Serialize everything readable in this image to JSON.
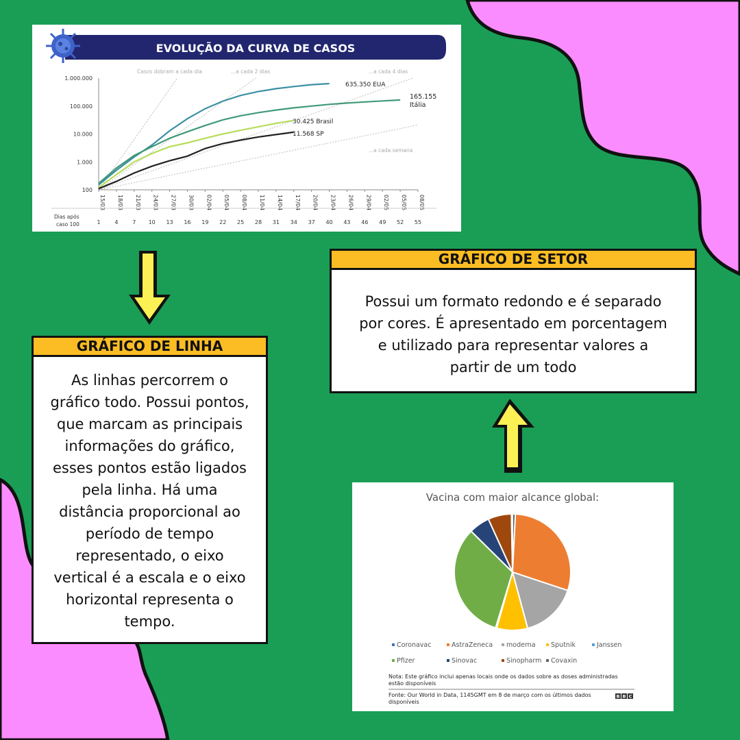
{
  "colors": {
    "background": "#1a9e56",
    "blob": "#fb8cff",
    "card_header": "#fbbd23",
    "arrow_fill": "#fbf154"
  },
  "line_panel": {
    "banner_title": "EVOLUÇÃO DA CURVA DE CASOS",
    "virus_icon": "coronavirus-icon",
    "guide_labels": [
      "Casos dobram a cada dia",
      "...a cada 2 dias",
      "...a cada 4 dias",
      "...a cada semana"
    ],
    "row_label_line1": "Dias após",
    "row_label_line2": "caso 100",
    "series_labels": {
      "eua": "635.350 EUA",
      "italia_value": "165.155",
      "italia_name": "Itália",
      "brasil": "30.425 Brasil",
      "sp": "11.568 SP"
    }
  },
  "linha_card": {
    "title": "GRÁFICO DE LINHA",
    "text": "As linhas percorrem o gráfico todo. Possui pontos, que marcam as principais informações do gráfico,  esses pontos estão ligados pela linha. Há uma distância proporcional ao período de tempo representado, o eixo vertical é a escala e o eixo horizontal representa o tempo."
  },
  "setor_card": {
    "title": "GRÁFICO DE SETOR",
    "text": "Possui um formato redondo e é separado por cores. É apresentado em porcentagem e utilizado para representar valores a partir de um todo"
  },
  "pie_panel": {
    "note": "Nota: Este gráfico inclui apenas locais onde os dados sobre as doses administradas estão disponíveis",
    "source": "Fonte: Our World in Data, 1145GMT em 8 de março com os últimos dados disponíveis",
    "logo": "BBC"
  },
  "chart_data": [
    {
      "type": "line",
      "title": "EVOLUÇÃO DA CURVA DE CASOS",
      "yscale": "log",
      "ylim": [
        100,
        1000000
      ],
      "yticks": [
        "100",
        "1.000",
        "10.000",
        "100.000",
        "1.000.000"
      ],
      "x_dates": [
        "15/03",
        "18/03",
        "21/03",
        "24/03",
        "27/03",
        "30/03",
        "02/04",
        "05/04",
        "08/04",
        "11/04",
        "14/04",
        "17/04",
        "20/04",
        "23/04",
        "26/04",
        "29/04",
        "02/05",
        "05/05",
        "08/05"
      ],
      "x_days": [
        "1",
        "4",
        "7",
        "10",
        "13",
        "16",
        "19",
        "22",
        "25",
        "28",
        "31",
        "34",
        "37",
        "40",
        "43",
        "46",
        "49",
        "52",
        "55"
      ],
      "series": [
        {
          "name": "EUA",
          "color": "#3b8fa3",
          "x": [
            1,
            4,
            7,
            10,
            13,
            16,
            19,
            22,
            25,
            28,
            31,
            34,
            37,
            40
          ],
          "values": [
            150,
            500,
            1500,
            4000,
            13000,
            35000,
            80000,
            150000,
            240000,
            330000,
            420000,
            500000,
            580000,
            635350
          ]
        },
        {
          "name": "Itália",
          "color": "#3f9a77",
          "x": [
            1,
            4,
            7,
            10,
            13,
            16,
            19,
            22,
            25,
            28,
            31,
            34,
            37,
            40,
            43,
            46,
            49,
            52
          ],
          "values": [
            170,
            600,
            1700,
            3500,
            7000,
            12000,
            20000,
            32000,
            45000,
            58000,
            72000,
            86000,
            100000,
            115000,
            128000,
            140000,
            152000,
            165155
          ]
        },
        {
          "name": "Brasil",
          "color": "#b7dc5a",
          "x": [
            1,
            4,
            7,
            10,
            13,
            16,
            19,
            22,
            25,
            28,
            31,
            34
          ],
          "values": [
            120,
            350,
            1000,
            2000,
            3500,
            4800,
            7000,
            10000,
            13500,
            18000,
            24000,
            30425
          ]
        },
        {
          "name": "SP",
          "color": "#222222",
          "x": [
            1,
            4,
            7,
            10,
            13,
            16,
            19,
            22,
            25,
            28,
            31,
            34
          ],
          "values": [
            110,
            200,
            400,
            700,
            1100,
            1600,
            3000,
            4500,
            6000,
            7800,
            9500,
            11568
          ]
        }
      ]
    },
    {
      "type": "pie",
      "title": "Vacina com maior alcance global:",
      "series": [
        {
          "name": "Coronavac",
          "color": "#4472c4",
          "value": 0.3
        },
        {
          "name": "AstraZeneca",
          "color": "#ed7d31",
          "value": 29.3
        },
        {
          "name": "moderna",
          "color": "#a5a5a5",
          "value": 15.7
        },
        {
          "name": "Sputnik",
          "color": "#ffc000",
          "value": 8.6
        },
        {
          "name": "Janssen",
          "color": "#5b9bd5",
          "value": 0.3
        },
        {
          "name": "Pfizer",
          "color": "#70ad47",
          "value": 32.7
        },
        {
          "name": "Sinovac",
          "color": "#264478",
          "value": 5.8
        },
        {
          "name": "Sinopharm",
          "color": "#9e480e",
          "value": 6.5
        },
        {
          "name": "Covaxin",
          "color": "#636363",
          "value": 0.8
        }
      ],
      "legend": "bottom"
    }
  ]
}
